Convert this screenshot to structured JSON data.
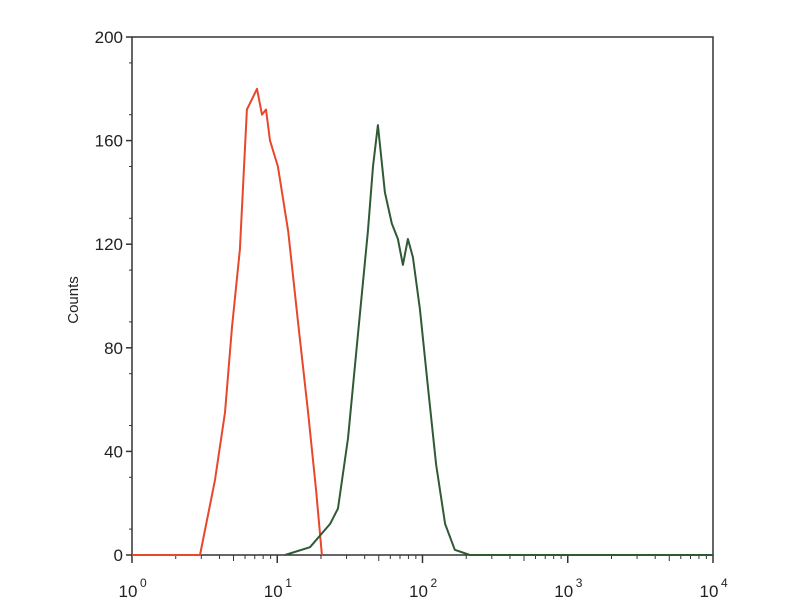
{
  "chart_data": {
    "type": "line",
    "title": "",
    "xlabel": "",
    "ylabel": "Counts",
    "x_scale": "log",
    "xlim": [
      1,
      10000
    ],
    "ylim": [
      0,
      200
    ],
    "x_ticks": [
      {
        "base": "10",
        "exp": "0"
      },
      {
        "base": "10",
        "exp": "1"
      },
      {
        "base": "10",
        "exp": "2"
      },
      {
        "base": "10",
        "exp": "3"
      },
      {
        "base": "10",
        "exp": "4"
      }
    ],
    "x_tick_values": [
      1,
      10,
      100,
      1000,
      10000
    ],
    "y_ticks": [
      "0",
      "40",
      "80",
      "120",
      "160",
      "200"
    ],
    "y_tick_values": [
      0,
      40,
      80,
      120,
      160,
      200
    ],
    "grid": false,
    "legend": "none",
    "series": [
      {
        "color": "#e8472b",
        "x": [
          1,
          2.94,
          3.73,
          4.37,
          4.88,
          5.53,
          6.18,
          6.7,
          7.25,
          7.85,
          8.36,
          8.91,
          10.1,
          11.9,
          13.9,
          16.3,
          18.5,
          20.3
        ],
        "y": [
          0,
          0,
          29,
          55,
          88,
          118,
          172,
          176,
          180,
          170,
          172,
          160,
          150,
          125,
          90,
          55,
          25,
          0
        ]
      },
      {
        "color": "#2f5a35",
        "x": [
          11.3,
          16.8,
          23.1,
          26.2,
          30.7,
          35.9,
          42.1,
          45.6,
          49.3,
          55.1,
          61.5,
          67.7,
          73.3,
          79.4,
          85.9,
          95.9,
          109,
          124,
          143,
          167,
          212,
          10000
        ],
        "y": [
          0,
          3,
          12,
          18,
          45,
          85,
          125,
          150,
          166,
          140,
          128,
          122,
          112,
          122,
          115,
          95,
          65,
          35,
          12,
          2,
          0,
          0
        ]
      }
    ]
  }
}
